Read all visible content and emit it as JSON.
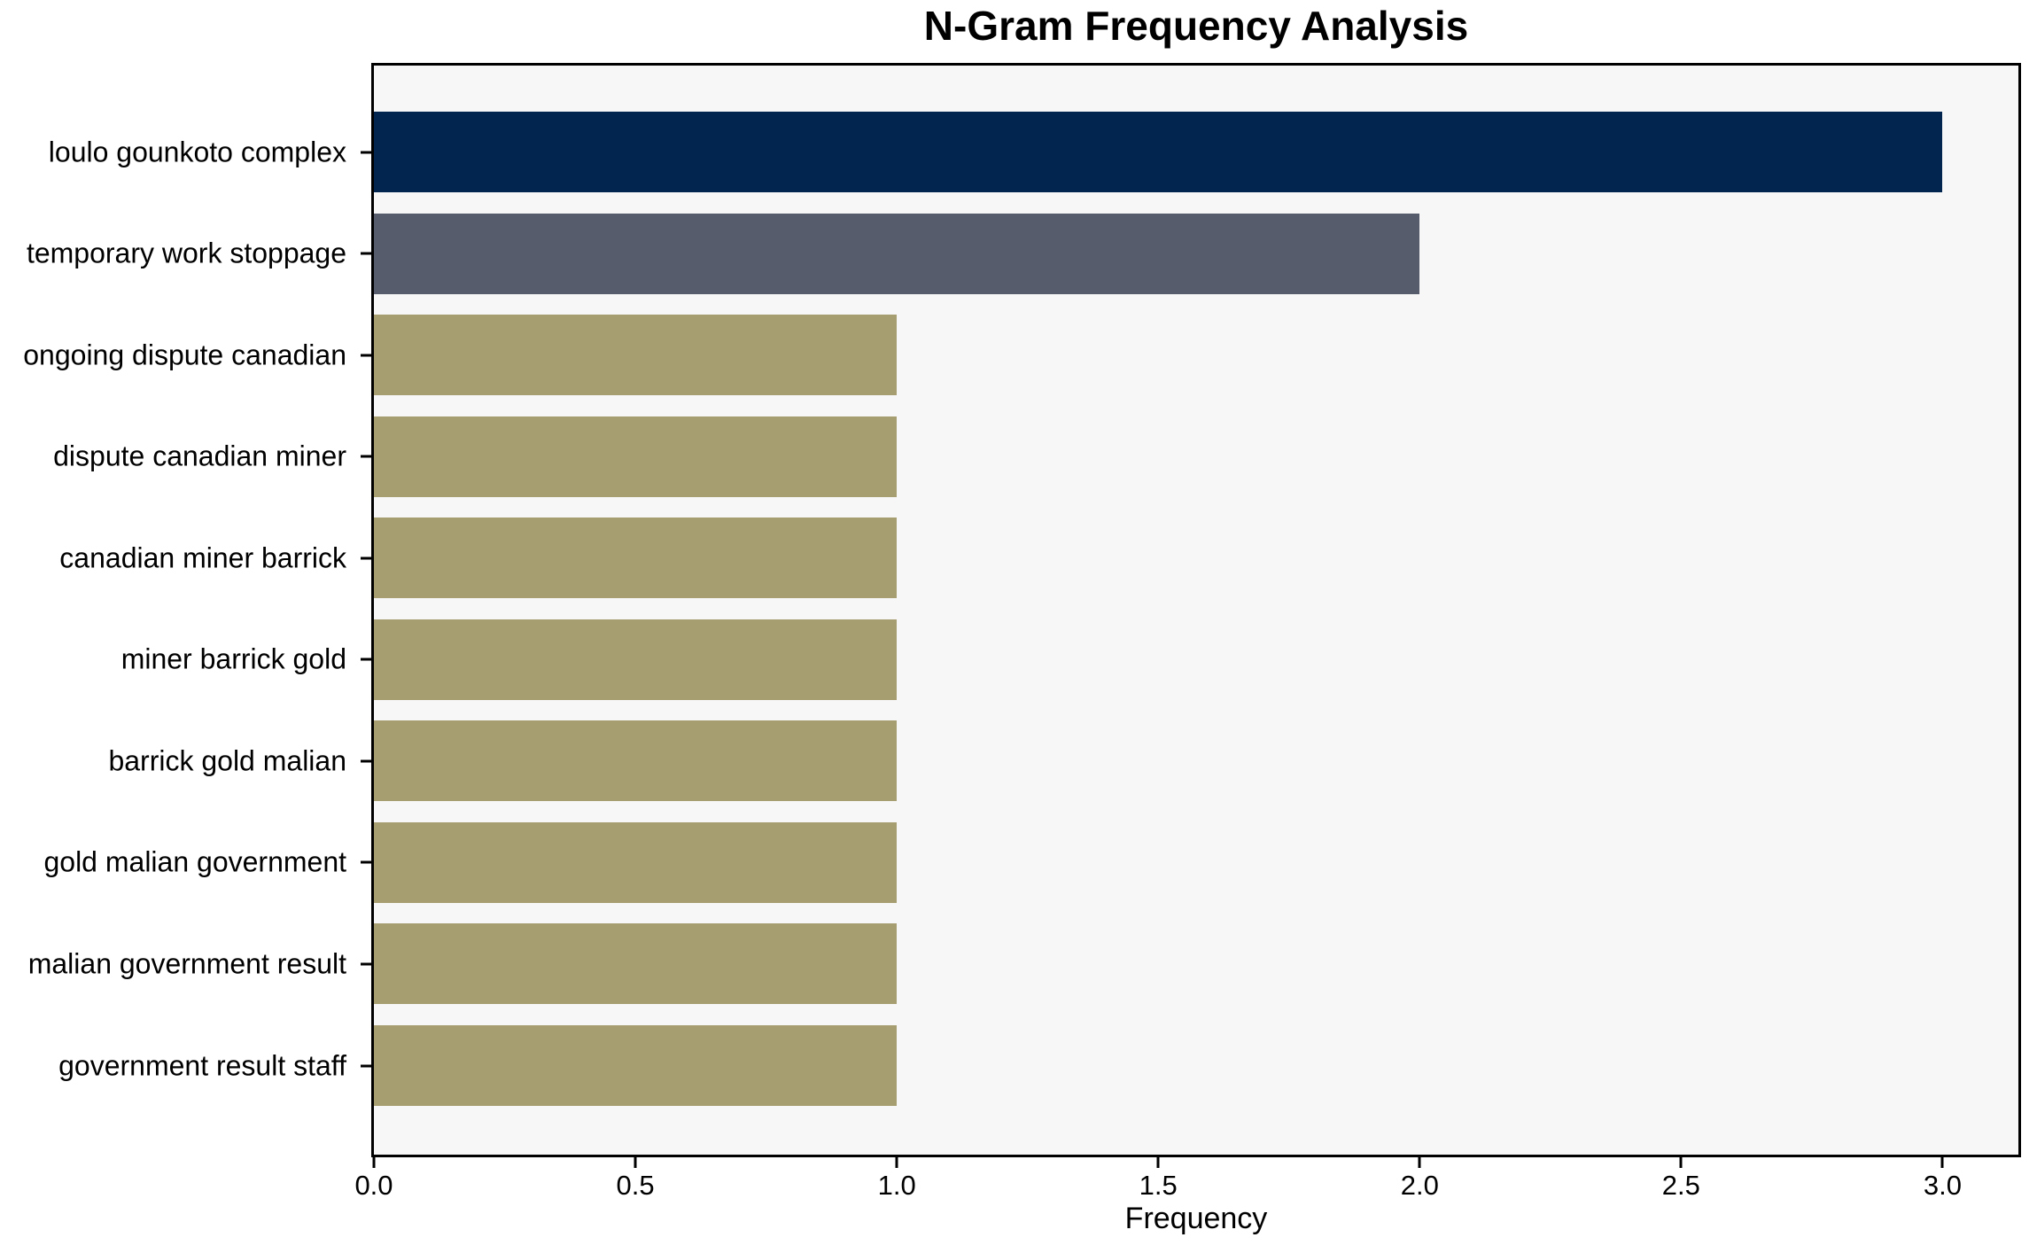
{
  "title": "N-Gram Frequency Analysis",
  "chart_data": {
    "type": "bar",
    "orientation": "horizontal",
    "title": "N-Gram Frequency Analysis",
    "xlabel": "Frequency",
    "ylabel": "",
    "categories": [
      "loulo gounkoto complex",
      "temporary work stoppage",
      "ongoing dispute canadian",
      "dispute canadian miner",
      "canadian miner barrick",
      "miner barrick gold",
      "barrick gold malian",
      "gold malian government",
      "malian government result",
      "government result staff"
    ],
    "values": [
      3,
      2,
      1,
      1,
      1,
      1,
      1,
      1,
      1,
      1
    ],
    "bar_colors": [
      "#022550",
      "#565c6c",
      "#a69d71",
      "#a69d71",
      "#a69d71",
      "#a69d71",
      "#a69d71",
      "#a69d71",
      "#a69d71",
      "#a69d71"
    ],
    "xlim": [
      0,
      3.145
    ],
    "xticks": [
      0.0,
      0.5,
      1.0,
      1.5,
      2.0,
      2.5,
      3.0
    ],
    "xtick_labels": [
      "0.0",
      "0.5",
      "1.0",
      "1.5",
      "2.0",
      "2.5",
      "3.0"
    ],
    "grid": false,
    "legend_position": "none",
    "plot_background": "#f7f7f7",
    "figure_background": "#ffffff",
    "spine_color": "#000000"
  }
}
